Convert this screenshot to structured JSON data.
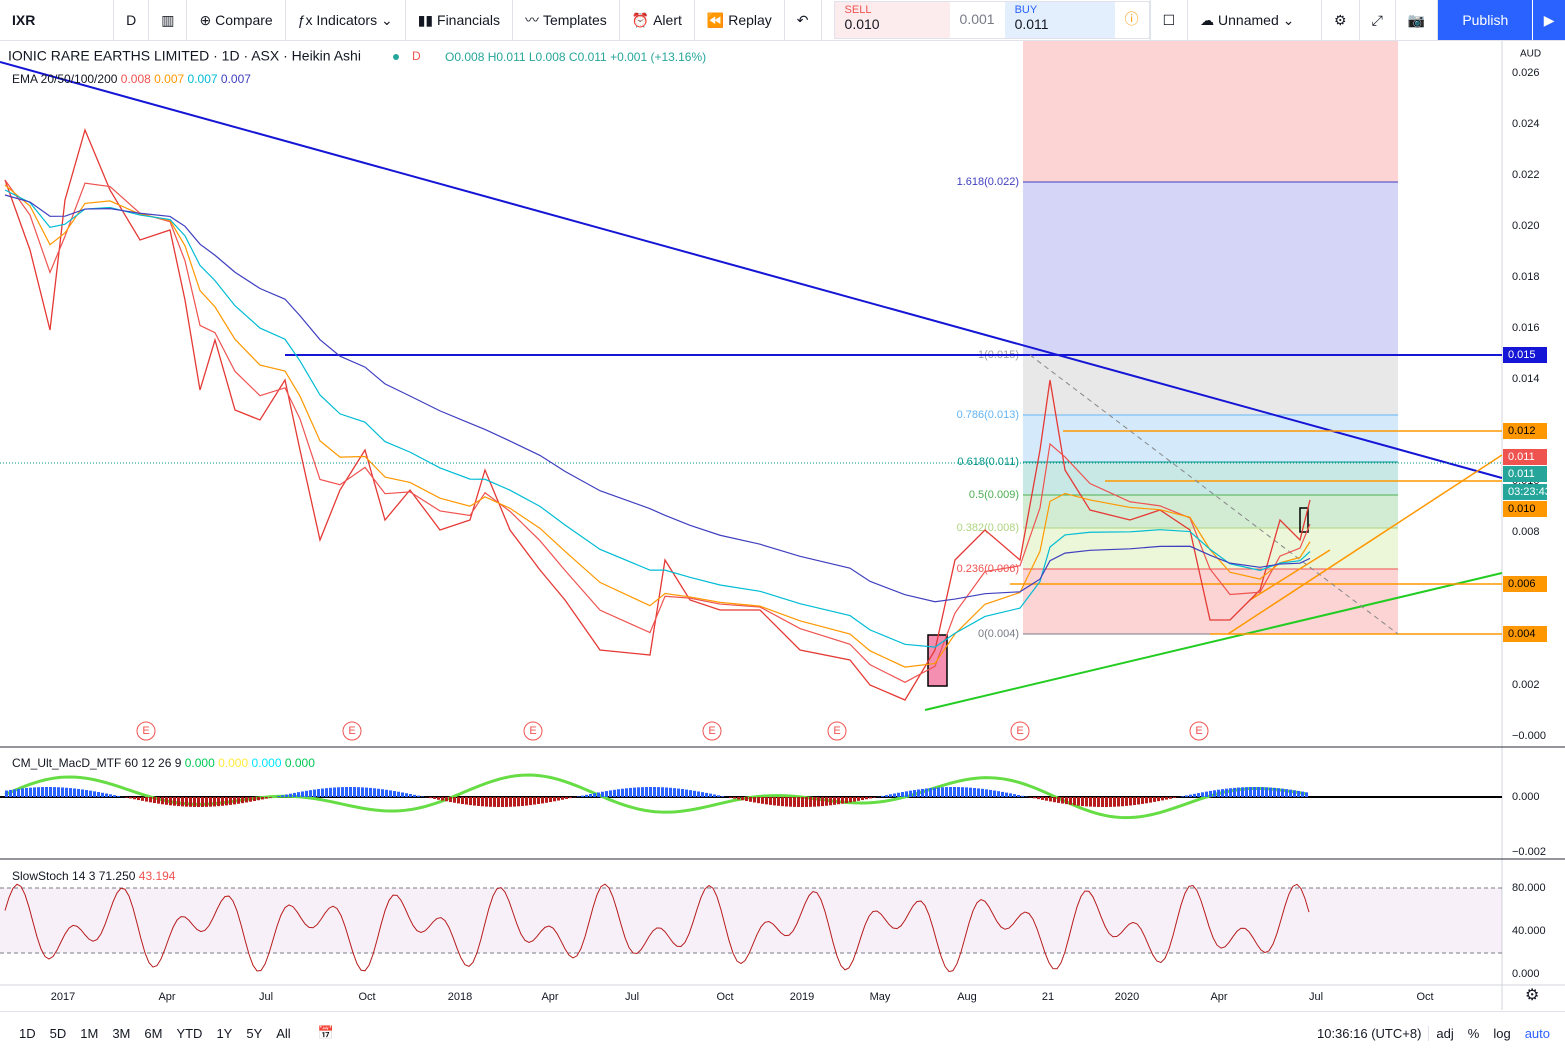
{
  "toolbar": {
    "symbol": "IXR",
    "interval": "D",
    "items": [
      "Compare",
      "Indicators",
      "Financials",
      "Templates",
      "Alert",
      "Replay"
    ],
    "sell_label": "SELL",
    "sell_price": "0.010",
    "spread": "0.001",
    "buy_label": "BUY",
    "buy_price": "0.011",
    "layout_name": "Unnamed",
    "publish": "Publish"
  },
  "header": {
    "title": "IONIC RARE EARTHS LIMITED · 1D · ASX · Heikin Ashi",
    "flag": "D",
    "ohlc": [
      "O0.008",
      "H0.011",
      "L0.008",
      "C0.011",
      "+0.001 (+13.16%)"
    ],
    "ema_name": "EMA 20/50/100/200",
    "ema_values": [
      "0.008",
      "0.007",
      "0.007",
      "0.007"
    ]
  },
  "price_axis": {
    "currency": "AUD",
    "ticks": [
      "0.026",
      "0.024",
      "0.022",
      "0.020",
      "0.018",
      "0.016",
      "0.014",
      "0.012",
      "0.010",
      "0.008",
      "0.006",
      "0.004",
      "0.002",
      "−0.000"
    ]
  },
  "price_tags": [
    "0.015",
    "0.012",
    "0.011",
    "0.011",
    "03:23:43",
    "0.010",
    "0.006",
    "0.004"
  ],
  "fib_levels": [
    "1.618(0.022)",
    "1(0.015)",
    "0.786(0.013)",
    "0.618(0.011)",
    "0.5(0.009)",
    "0.382(0.008)",
    "0.236(0.006)",
    "0(0.004)"
  ],
  "earnings_markers": [
    "E",
    "E",
    "E",
    "E",
    "E",
    "E",
    "E"
  ],
  "time_axis": [
    "2017",
    "Apr",
    "Jul",
    "Oct",
    "2018",
    "Apr",
    "Jul",
    "Oct",
    "2019",
    "May",
    "Aug",
    "21",
    "2020",
    "Apr",
    "Jul",
    "Oct"
  ],
  "macd": {
    "legend": "CM_Ult_MacD_MTF 60 12 26 9",
    "values": [
      "0.000",
      "0.000",
      "0.000",
      "0.000"
    ],
    "axis": [
      "0.000",
      "−0.002"
    ]
  },
  "stoch": {
    "legend": "SlowStoch 14 3",
    "values": [
      "71.250",
      "43.194"
    ],
    "axis": [
      "80.000",
      "40.000",
      "0.000"
    ]
  },
  "bottom_bar": {
    "ranges": [
      "1D",
      "5D",
      "1M",
      "3M",
      "6M",
      "YTD",
      "1Y",
      "5Y",
      "All"
    ],
    "clock": "10:36:16 (UTC+8)",
    "options": [
      "adj",
      "%",
      "log",
      "auto"
    ]
  }
}
